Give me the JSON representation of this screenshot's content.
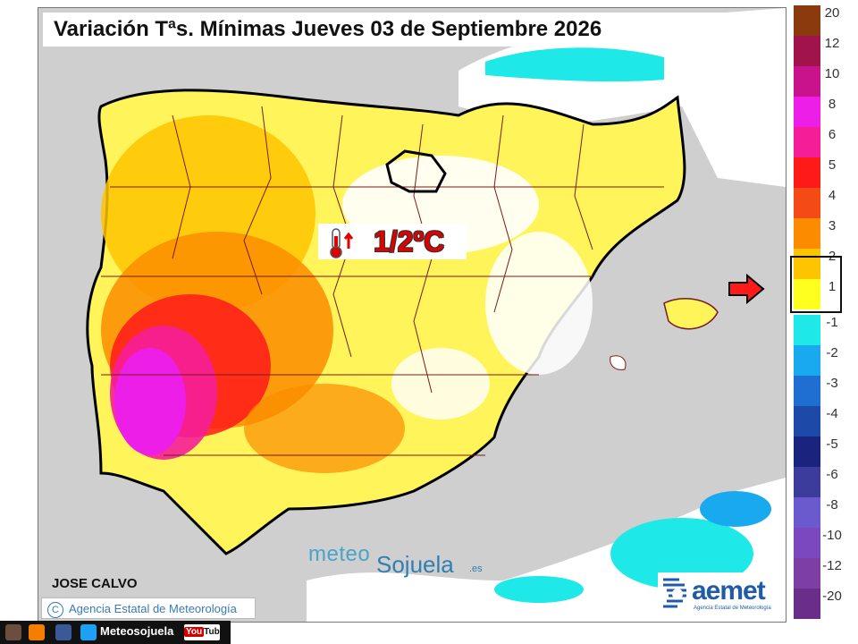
{
  "title": "Variación Tªs. Mínimas Jueves 03 de Septiembre 2026",
  "badge": {
    "text": "1/2ºC",
    "icon": "thermometer-up-icon"
  },
  "brand": {
    "part1": "meteo",
    "part2": "Sojuela",
    "suffix": ".es"
  },
  "author": "JOSE CALVO",
  "credit": "Agencia Estatal de Meteorología",
  "aemet": {
    "word": "aemet",
    "sub": "Agencia Estatal de Meteorología"
  },
  "footer": {
    "name": "Meteosojuela",
    "yt_you": "You",
    "yt_tube": "Tube",
    "icons": [
      "instagram-icon",
      "blogger-icon",
      "facebook-icon",
      "twitter-icon"
    ]
  },
  "legend": {
    "highlight_range": [
      "1",
      "2"
    ],
    "warm": [
      {
        "label": "20",
        "color": "#8b3a0e"
      },
      {
        "label": "12",
        "color": "#a0144b"
      },
      {
        "label": "10",
        "color": "#c8138c"
      },
      {
        "label": "8",
        "color": "#ec1ee8"
      },
      {
        "label": "6",
        "color": "#f51e98"
      },
      {
        "label": "5",
        "color": "#ff1a1a"
      },
      {
        "label": "4",
        "color": "#f44a16"
      },
      {
        "label": "3",
        "color": "#fb8c00"
      },
      {
        "label": "2",
        "color": "#ffc400"
      },
      {
        "label": "1",
        "color": "#ffff1e"
      }
    ],
    "cold": [
      {
        "label": "-1",
        "color": "#1ee8e8"
      },
      {
        "label": "-2",
        "color": "#19a9ee"
      },
      {
        "label": "-3",
        "color": "#1f6fd2"
      },
      {
        "label": "-4",
        "color": "#1d4aa8"
      },
      {
        "label": "-5",
        "color": "#1a237e"
      },
      {
        "label": "-6",
        "color": "#3c3c9c"
      },
      {
        "label": "-8",
        "color": "#6a5acd"
      },
      {
        "label": "-10",
        "color": "#7b48bf"
      },
      {
        "label": "-12",
        "color": "#7d3fa3"
      },
      {
        "label": "-20",
        "color": "#6a2d8a"
      }
    ]
  }
}
